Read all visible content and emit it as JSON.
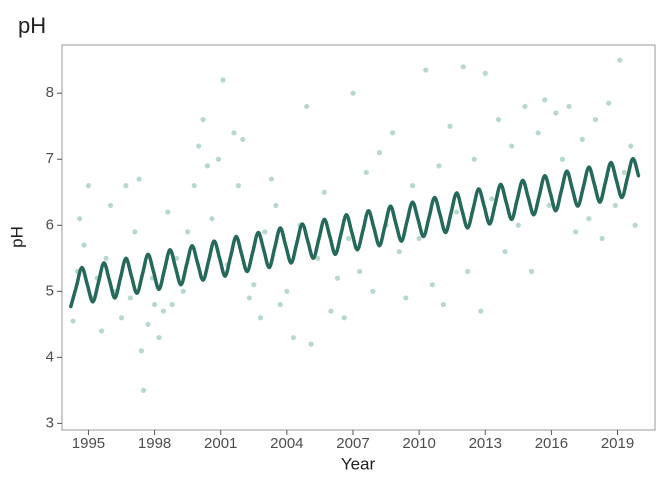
{
  "chart_data": {
    "type": "scatter",
    "title": "pH",
    "x_label": "Year",
    "y_label": "pH",
    "xlim": [
      1993.8,
      2020.7
    ],
    "ylim": [
      2.9,
      8.73
    ],
    "xticks": [
      1995,
      1998,
      2001,
      2004,
      2007,
      2010,
      2013,
      2016,
      2019
    ],
    "yticks": [
      3,
      4,
      5,
      6,
      7,
      8
    ],
    "grid": false,
    "series": [
      {
        "type": "scatter",
        "color": "#4e9e80",
        "opacity": 0.4,
        "x": [
          1994.3,
          1994.5,
          1994.6,
          1994.8,
          1995.0,
          1995.2,
          1995.4,
          1995.6,
          1995.8,
          1996.0,
          1996.2,
          1996.5,
          1996.7,
          1996.9,
          1997.1,
          1997.3,
          1997.4,
          1997.5,
          1997.7,
          1997.9,
          1998.0,
          1998.2,
          1998.4,
          1998.6,
          1998.8,
          1999.0,
          1999.3,
          1999.5,
          1999.8,
          2000.0,
          2000.2,
          2000.4,
          2000.6,
          2000.9,
          2001.1,
          2001.3,
          2001.6,
          2001.8,
          2002.0,
          2002.3,
          2002.5,
          2002.8,
          2003.0,
          2003.3,
          2003.5,
          2003.7,
          2004.0,
          2004.3,
          2004.6,
          2004.9,
          2005.1,
          2005.4,
          2005.7,
          2006.0,
          2006.3,
          2006.6,
          2006.8,
          2007.0,
          2007.3,
          2007.6,
          2007.9,
          2008.2,
          2008.5,
          2008.8,
          2009.1,
          2009.4,
          2009.7,
          2010.0,
          2010.3,
          2010.6,
          2010.9,
          2011.1,
          2011.4,
          2011.7,
          2012.0,
          2012.2,
          2012.5,
          2012.8,
          2013.0,
          2013.3,
          2013.6,
          2013.9,
          2014.2,
          2014.5,
          2014.8,
          2015.1,
          2015.4,
          2015.7,
          2015.9,
          2016.2,
          2016.5,
          2016.8,
          2017.1,
          2017.4,
          2017.7,
          2018.0,
          2018.3,
          2018.6,
          2018.9,
          2019.1,
          2019.3,
          2019.6,
          2019.8
        ],
        "values": [
          4.55,
          5.3,
          6.1,
          5.7,
          6.6,
          4.9,
          5.2,
          4.4,
          5.5,
          6.3,
          5.0,
          4.6,
          6.6,
          4.9,
          5.9,
          6.7,
          4.1,
          3.5,
          4.5,
          5.2,
          4.8,
          4.3,
          4.7,
          6.2,
          4.8,
          5.5,
          5.0,
          5.9,
          6.6,
          7.2,
          7.6,
          6.9,
          6.1,
          7.0,
          8.2,
          5.4,
          7.4,
          6.6,
          7.3,
          4.9,
          5.1,
          4.6,
          5.9,
          6.7,
          6.3,
          4.8,
          5.0,
          4.3,
          6.0,
          7.8,
          4.2,
          5.5,
          6.5,
          4.7,
          5.2,
          4.6,
          5.8,
          8.0,
          5.3,
          6.8,
          5.0,
          7.1,
          6.0,
          7.4,
          5.6,
          4.9,
          6.6,
          5.8,
          8.35,
          5.1,
          6.9,
          4.8,
          7.5,
          6.2,
          8.4,
          5.3,
          7.0,
          4.7,
          8.3,
          6.4,
          7.6,
          5.6,
          7.2,
          6.0,
          7.8,
          5.3,
          7.4,
          7.9,
          6.3,
          7.7,
          7.0,
          7.8,
          5.9,
          7.3,
          6.1,
          7.6,
          5.8,
          7.85,
          6.3,
          8.5,
          6.8,
          7.2,
          6.0
        ]
      },
      {
        "type": "line",
        "color": "#24695a",
        "x": [
          1994.2,
          1994.45,
          1994.7,
          1994.95,
          1995.2,
          1995.45,
          1995.7,
          1995.95,
          1996.2,
          1996.45,
          1996.7,
          1996.95,
          1997.2,
          1997.45,
          1997.7,
          1997.95,
          1998.2,
          1998.45,
          1998.7,
          1998.95,
          1999.2,
          1999.45,
          1999.7,
          1999.95,
          2000.2,
          2000.45,
          2000.7,
          2000.95,
          2001.2,
          2001.45,
          2001.7,
          2001.95,
          2002.2,
          2002.45,
          2002.7,
          2002.95,
          2003.2,
          2003.45,
          2003.7,
          2003.95,
          2004.2,
          2004.45,
          2004.7,
          2004.95,
          2005.2,
          2005.45,
          2005.7,
          2005.95,
          2006.2,
          2006.45,
          2006.7,
          2006.95,
          2007.2,
          2007.45,
          2007.7,
          2007.95,
          2008.2,
          2008.45,
          2008.7,
          2008.95,
          2009.2,
          2009.45,
          2009.7,
          2009.95,
          2010.2,
          2010.45,
          2010.7,
          2010.95,
          2011.2,
          2011.45,
          2011.7,
          2011.95,
          2012.2,
          2012.45,
          2012.7,
          2012.95,
          2013.2,
          2013.45,
          2013.7,
          2013.95,
          2014.2,
          2014.45,
          2014.7,
          2014.95,
          2015.2,
          2015.45,
          2015.7,
          2015.95,
          2016.2,
          2016.45,
          2016.7,
          2016.95,
          2017.2,
          2017.45,
          2017.7,
          2017.95,
          2018.2,
          2018.45,
          2018.7,
          2018.95,
          2019.2,
          2019.45,
          2019.7,
          2019.95
        ],
        "values": [
          4.77,
          5.07,
          5.36,
          5.1,
          4.84,
          5.13,
          5.43,
          5.17,
          4.9,
          5.2,
          5.5,
          5.23,
          4.97,
          5.26,
          5.56,
          5.3,
          5.03,
          5.33,
          5.63,
          5.36,
          5.1,
          5.4,
          5.69,
          5.43,
          5.17,
          5.46,
          5.76,
          5.5,
          5.23,
          5.53,
          5.83,
          5.56,
          5.3,
          5.59,
          5.89,
          5.63,
          5.36,
          5.66,
          5.96,
          5.69,
          5.43,
          5.73,
          6.02,
          5.76,
          5.5,
          5.79,
          6.09,
          5.83,
          5.56,
          5.86,
          6.16,
          5.89,
          5.63,
          5.92,
          6.22,
          5.96,
          5.69,
          5.99,
          6.29,
          6.02,
          5.76,
          6.06,
          6.35,
          6.09,
          5.83,
          6.12,
          6.42,
          6.16,
          5.89,
          6.19,
          6.49,
          6.22,
          5.96,
          6.25,
          6.55,
          6.29,
          6.02,
          6.32,
          6.62,
          6.35,
          6.09,
          6.39,
          6.68,
          6.42,
          6.16,
          6.45,
          6.75,
          6.49,
          6.22,
          6.52,
          6.82,
          6.55,
          6.29,
          6.58,
          6.88,
          6.62,
          6.35,
          6.65,
          6.95,
          6.68,
          6.42,
          6.72,
          7.01,
          6.75
        ]
      }
    ]
  }
}
